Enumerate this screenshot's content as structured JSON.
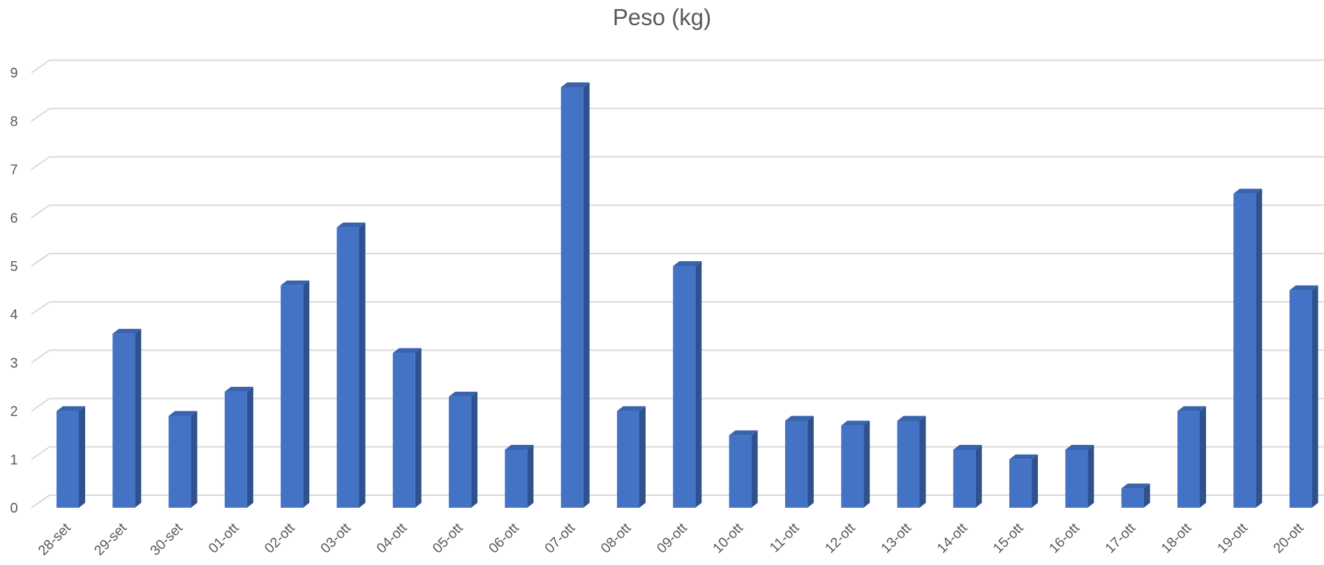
{
  "chart_data": {
    "type": "bar",
    "title": "Peso (kg)",
    "categories": [
      "28-set",
      "29-set",
      "30-set",
      "01-ott",
      "02-ott",
      "03-ott",
      "04-ott",
      "05-ott",
      "06-ott",
      "07-ott",
      "08-ott",
      "09-ott",
      "10-ott",
      "11-ott",
      "12-ott",
      "13-ott",
      "14-ott",
      "15-ott",
      "16-ott",
      "17-ott",
      "18-ott",
      "19-ott",
      "20-ott"
    ],
    "values": [
      2.0,
      3.6,
      1.9,
      2.4,
      4.6,
      5.8,
      3.2,
      2.3,
      1.2,
      8.7,
      2.0,
      5.0,
      1.5,
      1.8,
      1.7,
      1.8,
      1.2,
      1.0,
      1.2,
      0.4,
      2.0,
      6.5,
      4.5
    ],
    "yticks": [
      "0",
      "1",
      "2",
      "3",
      "4",
      "5",
      "6",
      "7",
      "8",
      "9"
    ],
    "ylim": [
      0,
      9
    ],
    "grid": true,
    "bar_style": "3d",
    "colors": {
      "front": "#4472C4",
      "side": "#2F528F",
      "top": "#3A63AD",
      "grid": "#D9D9D9",
      "text": "#595959"
    }
  }
}
